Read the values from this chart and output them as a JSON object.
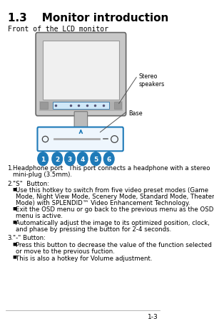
{
  "title": "1.3    Monitor introduction",
  "subtitle": "Front of the LCD monitor",
  "bg_color": "#ffffff",
  "text_color": "#000000",
  "section_title_size": 11,
  "body_font_size": 6.5,
  "callout_stereo": "Stereo\nspeakers",
  "callout_base": "Base",
  "button_colors": [
    "#1e7ab8",
    "#1e7ab8",
    "#1e7ab8",
    "#1e7ab8",
    "#1e7ab8",
    "#1e7ab8"
  ],
  "button_labels": [
    "1",
    "2",
    "3",
    "4",
    "5",
    "6"
  ],
  "footer": "1-3",
  "item1_line1": "Headphone port   This port connects a headphone with a stereo",
  "item1_line2": "mini-plug (3.5mm).",
  "item2_label": "\"S\"  Button:",
  "item2_b1_l1": "Use this hotkey to switch from five video preset modes (Game",
  "item2_b1_l2": "Mode, Night View Mode, Scenery Mode, Standard Mode, Theater",
  "item2_b1_l3": "Mode) with SPLENDID™ Video Enhancement Technology.",
  "item2_b2_l1": "Exit the OSD menu or go back to the previous menu as the OSD",
  "item2_b2_l2": "menu is active.",
  "item2_b3_l1": "Automatically adjust the image to its optimized position, clock,",
  "item2_b3_l2": "and phase by pressing the button for 2-4 seconds.",
  "item3_label": "\"-\" Button:",
  "item3_b1_l1": "Press this button to decrease the value of the function selected",
  "item3_b1_l2": "or move to the previous fuction.",
  "item3_b2_l1": "This is also a hotkey for Volume adjustment."
}
